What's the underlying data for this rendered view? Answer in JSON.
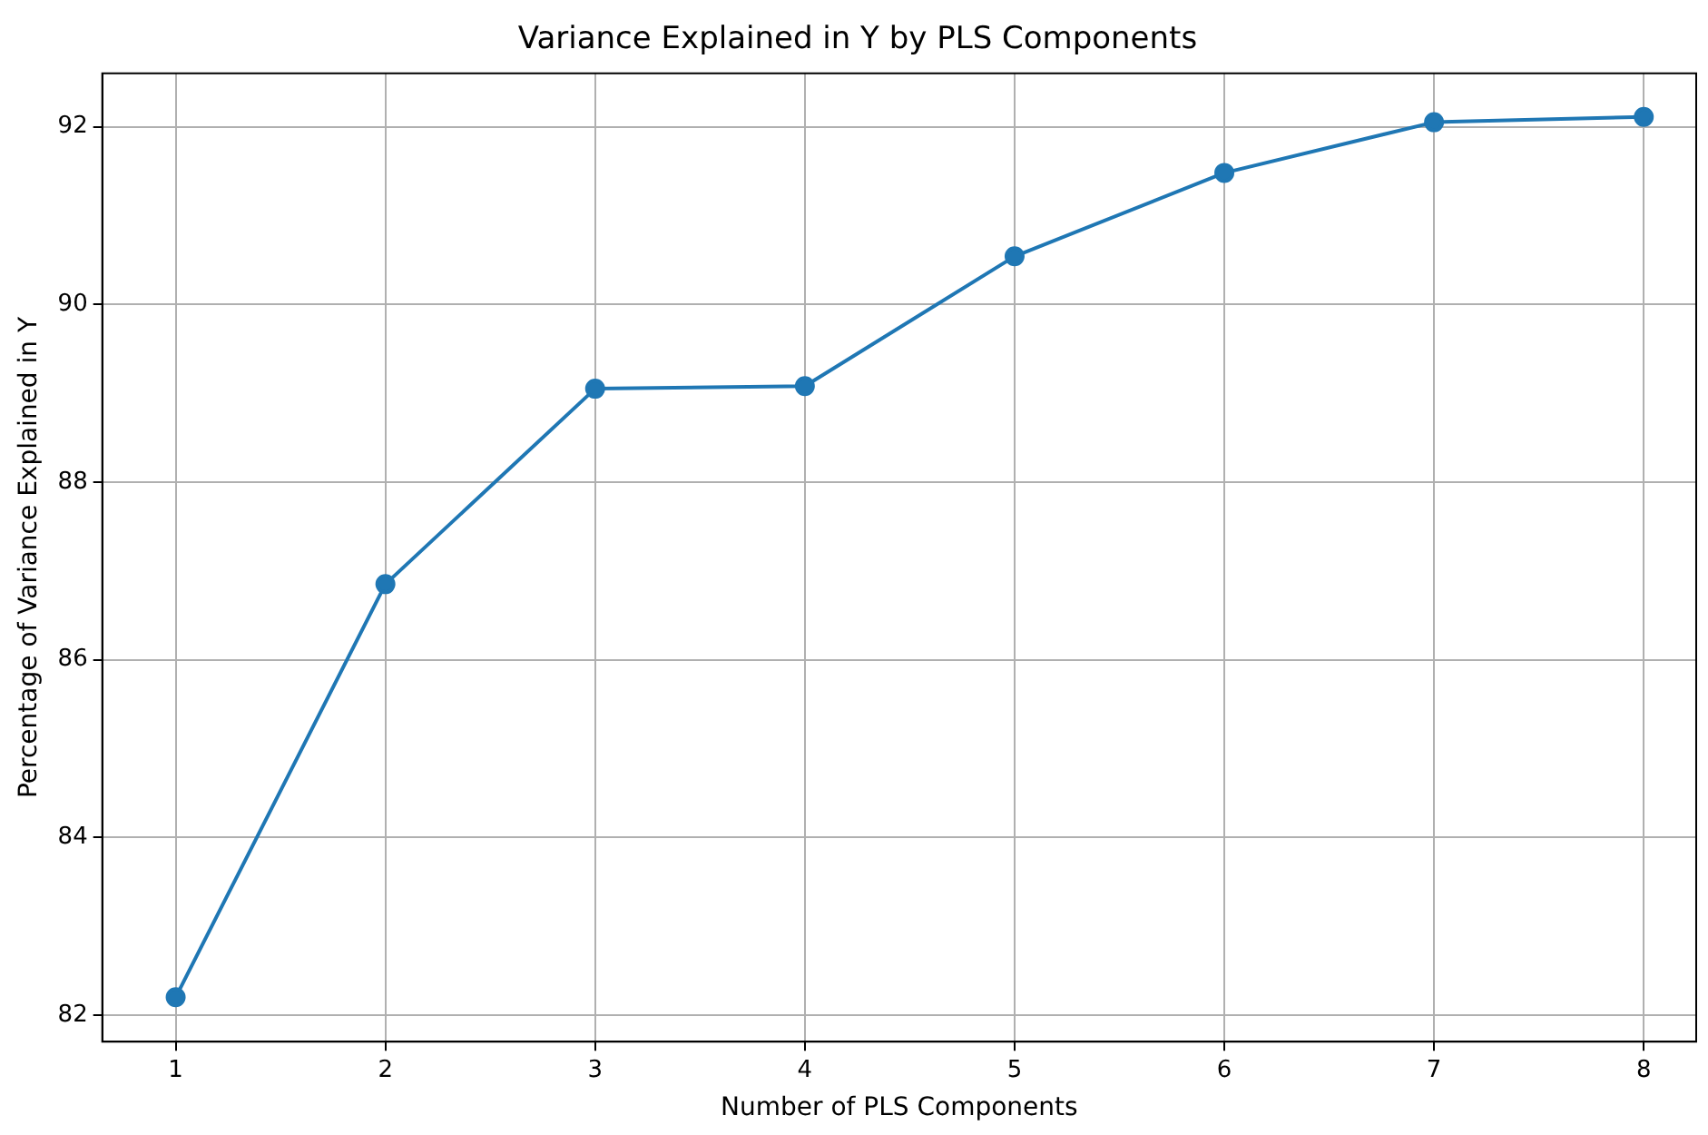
{
  "chart_data": {
    "type": "line",
    "title": "Variance Explained in Y by PLS Components",
    "xlabel": "Number of PLS Components",
    "ylabel": "Percentage of Variance Explained in Y",
    "x": [
      1,
      2,
      3,
      4,
      5,
      6,
      7,
      8
    ],
    "series": [
      {
        "color": "#1f77b4",
        "values": [
          82.2,
          86.85,
          89.05,
          89.08,
          90.54,
          91.48,
          92.05,
          92.11
        ]
      }
    ],
    "xlim": [
      0.65,
      8.25
    ],
    "xticks": [
      1,
      2,
      3,
      4,
      5,
      6,
      7,
      8
    ],
    "ylim": [
      81.7,
      92.6
    ],
    "yticks": [
      82,
      84,
      86,
      88,
      90,
      92
    ],
    "grid": true,
    "marker": "circle",
    "line_style": "solid"
  }
}
